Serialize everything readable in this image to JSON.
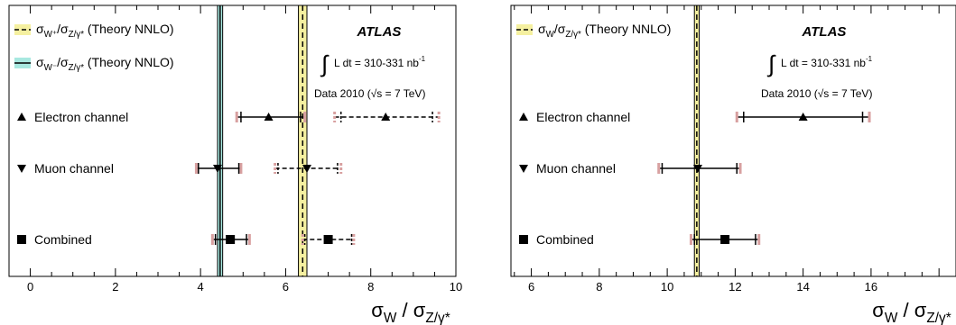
{
  "chart_data": [
    {
      "type": "scatter",
      "panel": "left",
      "xlim": [
        -0.5,
        10
      ],
      "xticks": [
        "0",
        "2",
        "4",
        "6",
        "8",
        "10"
      ],
      "xtick_values": [
        0,
        2,
        4,
        6,
        8,
        10
      ],
      "xlabel_main": "σ",
      "xlabel_sub1": "W",
      "xlabel_sep": " / σ",
      "xlabel_sub2": "Z/γ*",
      "experiment": "ATLAS",
      "lumi_prefix": "L dt = 310-331 nb",
      "lumi_sup": "-1",
      "data_label": "Data 2010 (√s = 7 TeV)",
      "legend": [
        {
          "main": "σ",
          "sub1": "W⁺",
          "sep": "/σ",
          "sub2": "Z/γ*",
          "tail": " (Theory NNLO)",
          "style": "yellow-band"
        },
        {
          "main": "σ",
          "sub1": "W⁻",
          "sep": "/σ",
          "sub2": "Z/γ*",
          "tail": " (Theory NNLO)",
          "style": "cyan-band"
        }
      ],
      "theory_bands": [
        {
          "name": "W+ / Z theory NNLO",
          "center": 6.4,
          "low": 6.3,
          "high": 6.5,
          "fill": "#f5f0a0",
          "line": "#000000",
          "dashed": true
        },
        {
          "name": "W- / Z theory NNLO",
          "center": 4.46,
          "low": 4.4,
          "high": 4.52,
          "fill": "#a8e8e0",
          "line": "#000000",
          "dashed": false
        }
      ],
      "rows": [
        {
          "label": "Electron channel",
          "marker": "triangle-up"
        },
        {
          "label": "Muon channel",
          "marker": "triangle-down"
        },
        {
          "label": "Combined",
          "marker": "square"
        }
      ],
      "points": [
        {
          "row": 0,
          "charge": "W-",
          "value": 5.6,
          "stat_low": 4.95,
          "stat_high": 6.35,
          "tot_low": 4.85,
          "tot_high": 6.45,
          "dashed": false
        },
        {
          "row": 0,
          "charge": "W+",
          "value": 8.35,
          "stat_low": 7.3,
          "stat_high": 9.45,
          "tot_low": 7.15,
          "tot_high": 9.6,
          "dashed": true
        },
        {
          "row": 1,
          "charge": "W-",
          "value": 4.4,
          "stat_low": 3.95,
          "stat_high": 4.9,
          "tot_low": 3.9,
          "tot_high": 4.95,
          "dashed": false
        },
        {
          "row": 1,
          "charge": "W+",
          "value": 6.5,
          "stat_low": 5.82,
          "stat_high": 7.22,
          "tot_low": 5.75,
          "tot_high": 7.3,
          "dashed": true
        },
        {
          "row": 2,
          "charge": "W-",
          "value": 4.7,
          "stat_low": 4.35,
          "stat_high": 5.08,
          "tot_low": 4.28,
          "tot_high": 5.15,
          "dashed": false
        },
        {
          "row": 2,
          "charge": "W+",
          "value": 7.0,
          "stat_low": 6.45,
          "stat_high": 7.55,
          "tot_low": 6.4,
          "tot_high": 7.6,
          "dashed": true
        }
      ]
    },
    {
      "type": "scatter",
      "panel": "right",
      "xlim": [
        5.4,
        18.5
      ],
      "xticks": [
        "6",
        "8",
        "10",
        "12",
        "14",
        "16"
      ],
      "xtick_values": [
        6,
        8,
        10,
        12,
        14,
        16
      ],
      "xlabel_main": "σ",
      "xlabel_sub1": "W",
      "xlabel_sep": " / σ",
      "xlabel_sub2": "Z/γ*",
      "experiment": "ATLAS",
      "lumi_prefix": "L dt = 310-331 nb",
      "lumi_sup": "-1",
      "data_label": "Data 2010 (√s = 7 TeV)",
      "legend": [
        {
          "main": "σ",
          "sub1": "W",
          "sep": "/σ",
          "sub2": "Z/γ*",
          "tail": " (Theory NNLO)",
          "style": "yellow-band"
        }
      ],
      "theory_bands": [
        {
          "name": "W / Z theory NNLO",
          "center": 10.87,
          "low": 10.8,
          "high": 10.94,
          "fill": "#f5f0a0",
          "line": "#000000",
          "dashed": true
        }
      ],
      "rows": [
        {
          "label": "Electron channel",
          "marker": "triangle-up"
        },
        {
          "label": "Muon channel",
          "marker": "triangle-down"
        },
        {
          "label": "Combined",
          "marker": "square"
        }
      ],
      "points": [
        {
          "row": 0,
          "charge": "W",
          "value": 14.0,
          "stat_low": 12.25,
          "stat_high": 15.75,
          "tot_low": 12.05,
          "tot_high": 15.95,
          "dashed": false
        },
        {
          "row": 1,
          "charge": "W",
          "value": 10.9,
          "stat_low": 9.85,
          "stat_high": 12.05,
          "tot_low": 9.75,
          "tot_high": 12.15,
          "dashed": false
        },
        {
          "row": 2,
          "charge": "W",
          "value": 11.7,
          "stat_low": 10.8,
          "stat_high": 12.6,
          "tot_low": 10.7,
          "tot_high": 12.7,
          "dashed": false
        }
      ]
    }
  ]
}
